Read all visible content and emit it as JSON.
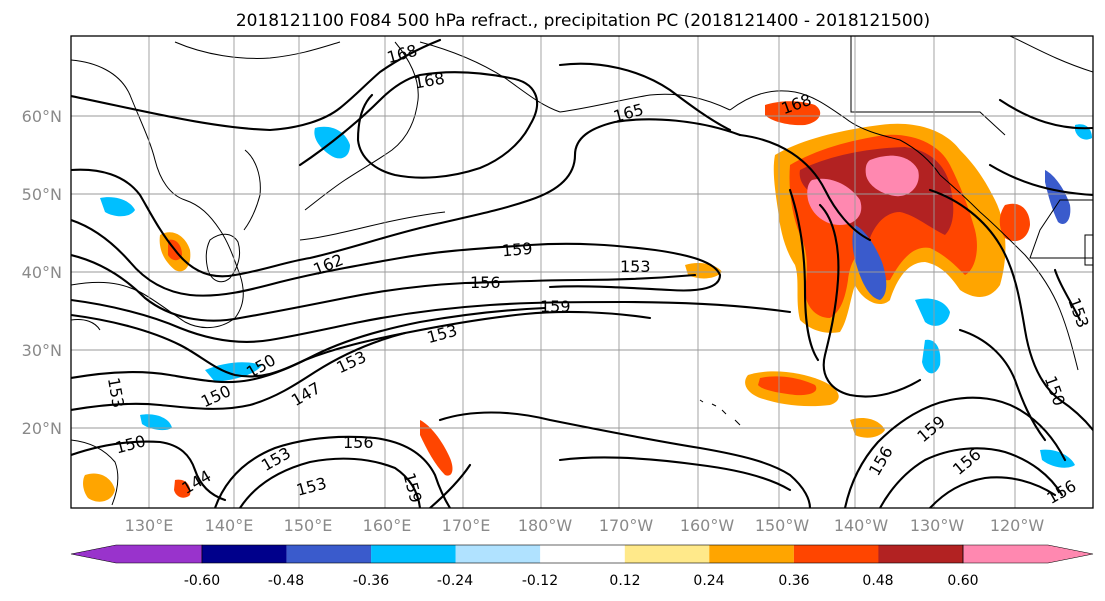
{
  "title": "2018121100 F084 500 hPa refract., precipitation PC (2018121400 - 2018121500)",
  "lat_labels": [
    "60°N",
    "50°N",
    "40°N",
    "30°N",
    "20°N"
  ],
  "lon_labels": [
    "130°E",
    "140°E",
    "150°E",
    "160°E",
    "170°E",
    "180°W",
    "170°W",
    "160°W",
    "150°W",
    "140°W",
    "130°W",
    "120°W"
  ],
  "colorbar": {
    "colors": [
      "#9933cc",
      "#00008b",
      "#3a5bcc",
      "#00bfff",
      "#b0e2ff",
      "#ffffff",
      "#ffe98a",
      "#ffa500",
      "#ff4500",
      "#b22222",
      "#ff88b0"
    ],
    "tick_labels": [
      "-0.60",
      "-0.48",
      "-0.36",
      "-0.24",
      "-0.12",
      "0.12",
      "0.24",
      "0.36",
      "0.48",
      "0.60"
    ]
  },
  "contour_labels": [
    "168",
    "168",
    "165",
    "168",
    "162",
    "159",
    "153",
    "156",
    "159",
    "153",
    "153",
    "150",
    "150",
    "147",
    "153",
    "150",
    "144",
    "153",
    "153",
    "156",
    "159",
    "156",
    "159",
    "156",
    "150",
    "156",
    "153"
  ]
}
